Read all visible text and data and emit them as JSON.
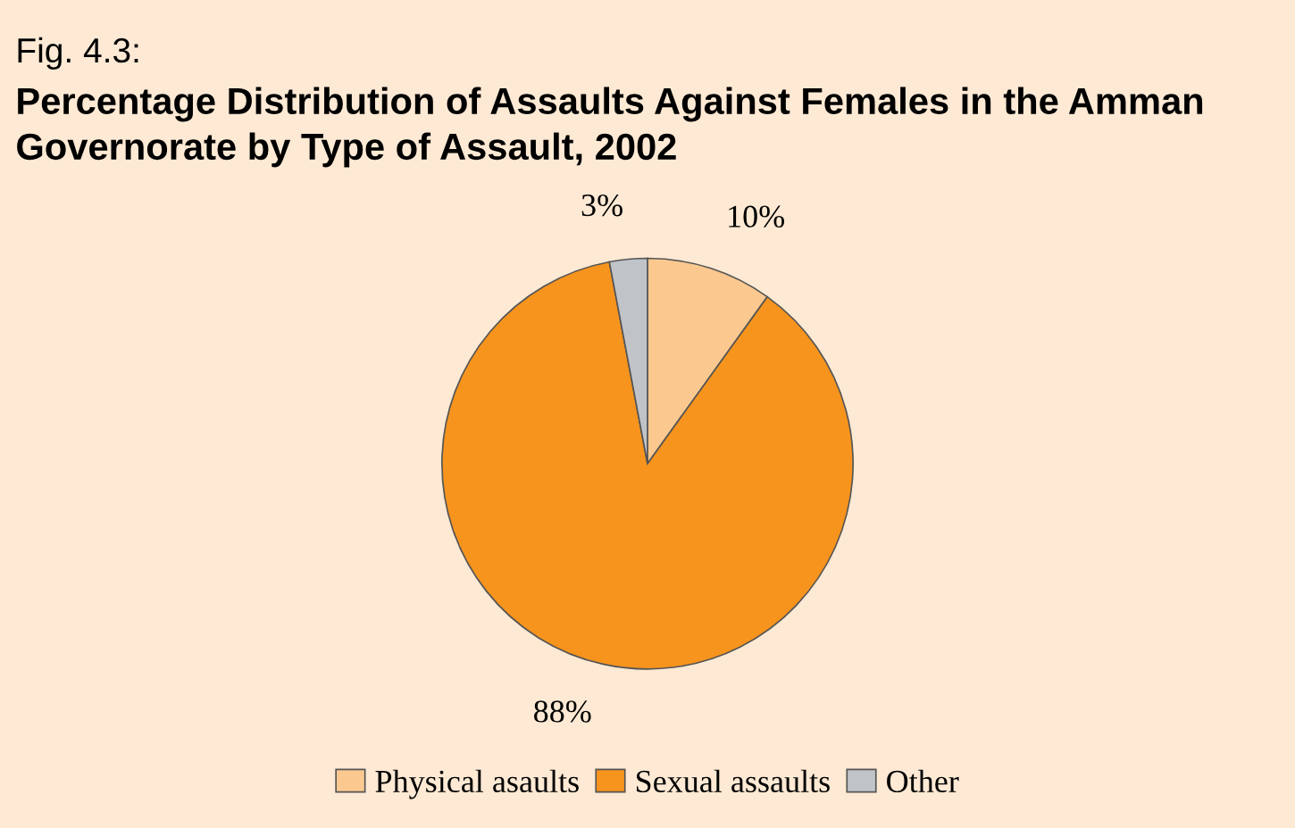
{
  "chart_data": {
    "type": "pie",
    "title": "Fig. 4.3:",
    "subtitle": "Percentage Distribution of Assaults Against Females in the Amman Governorate by Type of Assault, 2002",
    "categories": [
      "Physical asaults",
      "Sexual assaults",
      "Other"
    ],
    "values": [
      10,
      88,
      3
    ],
    "colors": [
      "#fbc98f",
      "#f7941d",
      "#c0c4c9"
    ],
    "value_labels": [
      "10%",
      "88%",
      "3%"
    ],
    "legend": "bottom"
  }
}
